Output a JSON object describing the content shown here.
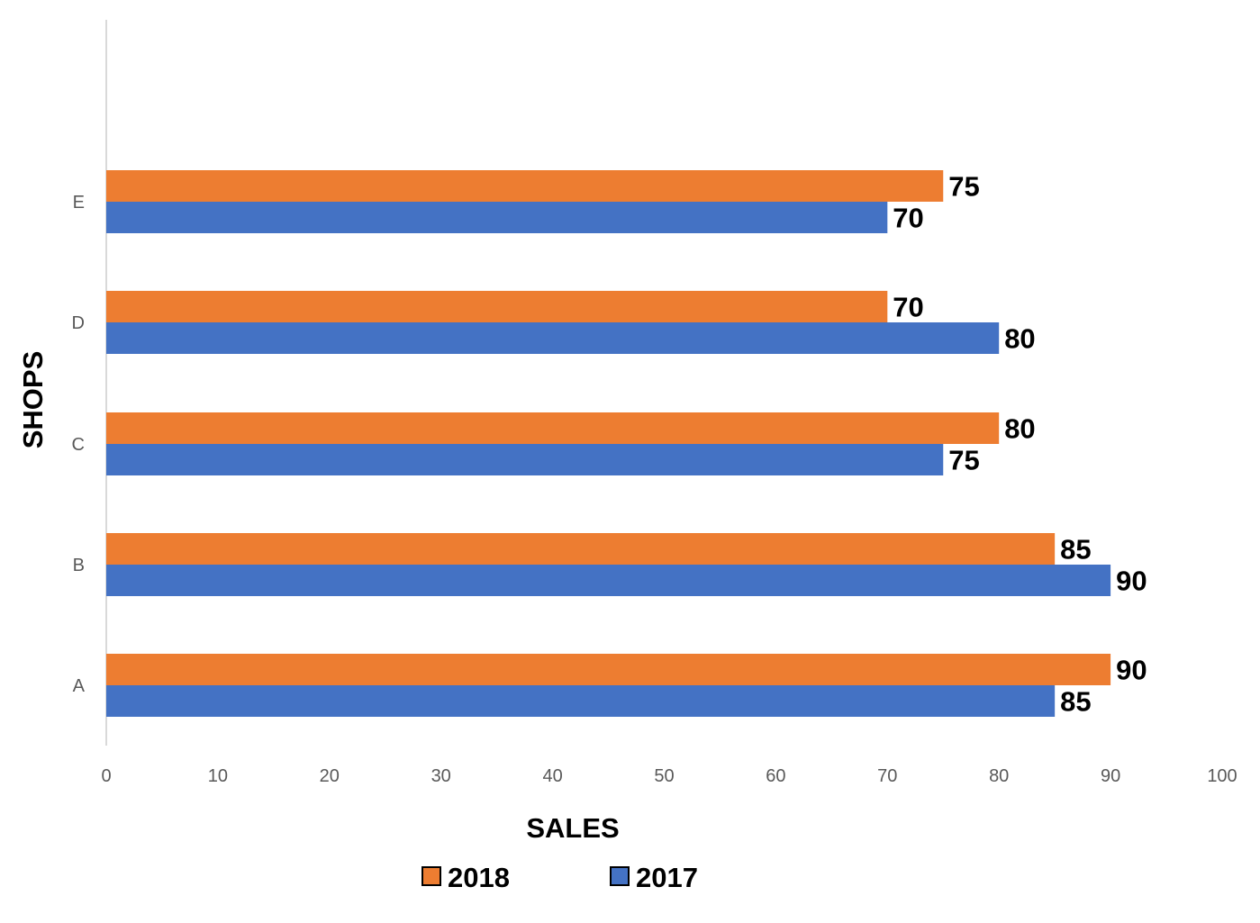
{
  "chart_data": {
    "type": "bar",
    "orientation": "horizontal",
    "categories": [
      "A",
      "B",
      "C",
      "D",
      "E"
    ],
    "series": [
      {
        "name": "2018",
        "values": [
          90,
          85,
          80,
          70,
          75
        ]
      },
      {
        "name": "2017",
        "values": [
          85,
          90,
          75,
          80,
          70
        ]
      }
    ],
    "title": "",
    "xlabel": "SALES",
    "ylabel": "SHOPS",
    "xlim": [
      0,
      100
    ],
    "xticks": [
      0,
      10,
      20,
      30,
      40,
      50,
      60,
      70,
      80,
      90,
      100
    ],
    "grid": false,
    "data_labels": true,
    "legend": {
      "placement": "bottom",
      "entries": [
        "2018",
        "2017"
      ]
    },
    "colors": {
      "2018": "#ED7D31",
      "2017": "#4472C4",
      "axis": "#D9D9D9",
      "tick_text": "#595959"
    }
  }
}
